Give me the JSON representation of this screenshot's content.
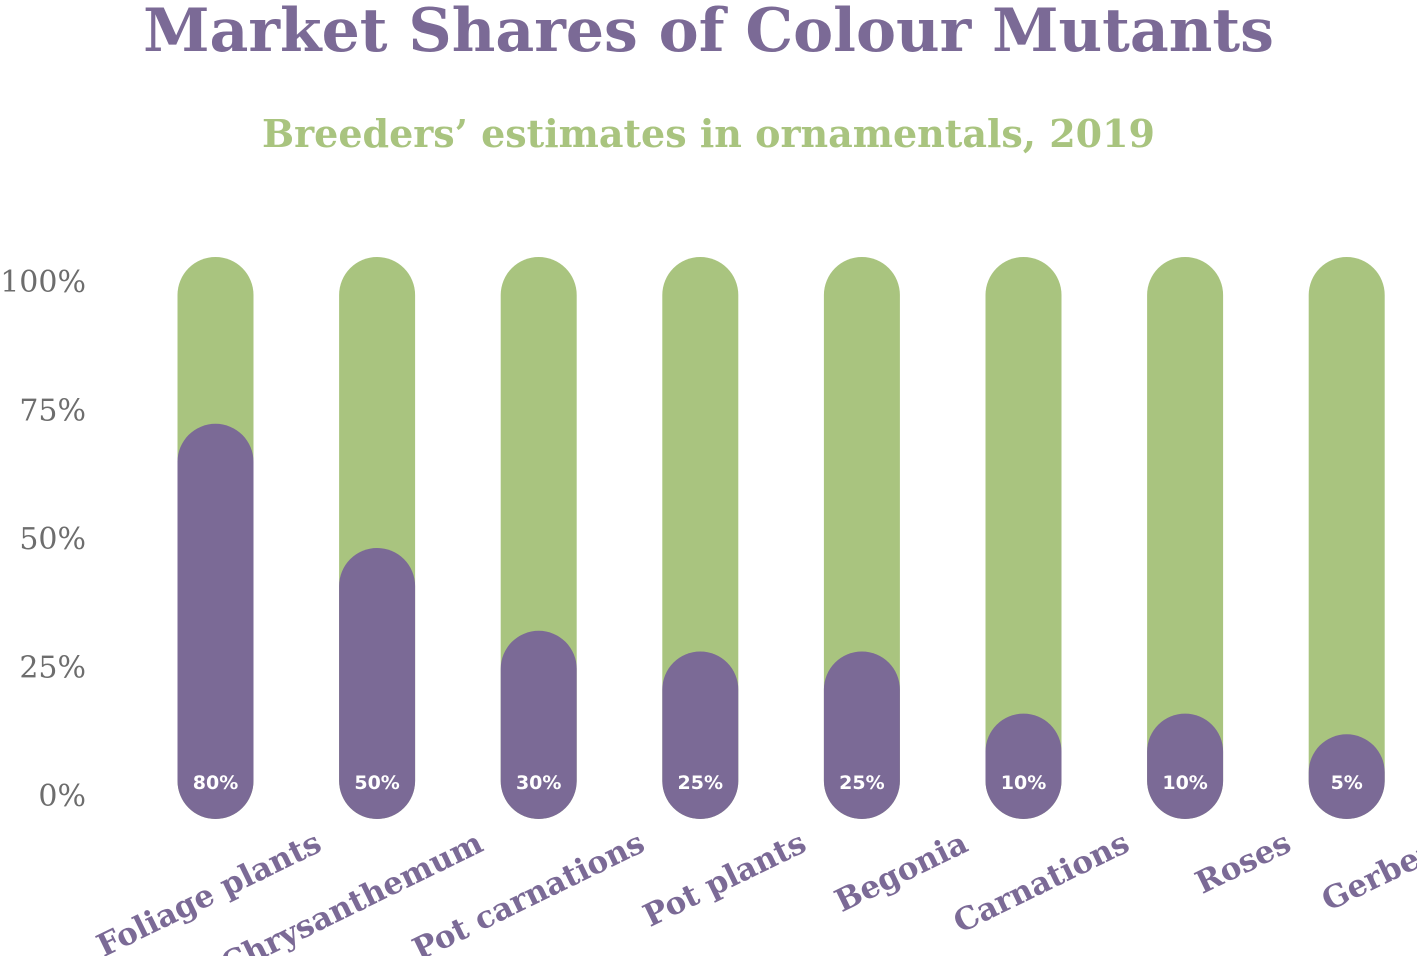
{
  "chart_data": {
    "type": "bar",
    "title": "Market Shares of Colour Mutants",
    "subtitle": "Breeders’ estimates in ornamentals, 2019",
    "categories": [
      "Foliage plants",
      "Chrysanthemum",
      "Pot carnations",
      "Pot plants",
      "Begonia",
      "Carnations",
      "Roses",
      "Gerbera"
    ],
    "values": [
      80,
      50,
      30,
      25,
      25,
      10,
      10,
      5
    ],
    "data_labels": [
      "80%",
      "50%",
      "30%",
      "25%",
      "25%",
      "10%",
      "10%",
      "5%"
    ],
    "yticks": [
      0,
      25,
      50,
      75,
      100
    ],
    "ytick_labels": [
      "0%",
      "25%",
      "50%",
      "75%",
      "100%"
    ],
    "ylim": [
      0,
      100
    ],
    "xlabel": "",
    "ylabel": "",
    "grid": false,
    "legend": "none",
    "colors": {
      "value": "#7b6a96",
      "background": "#a9c47f",
      "title": "#7b6a96",
      "subtitle": "#a9c47f",
      "tick": "#6d6d6d"
    }
  }
}
